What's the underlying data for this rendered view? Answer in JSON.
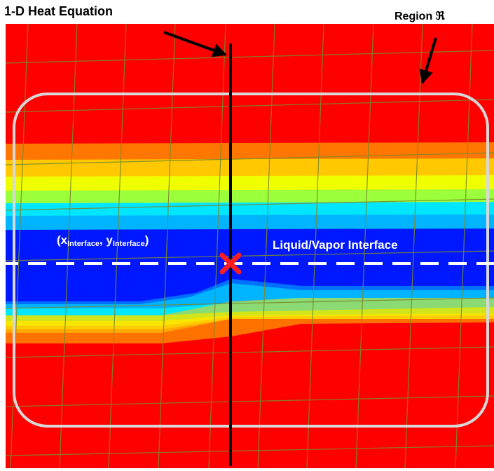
{
  "labels": {
    "top_left": "1-D Heat Equation",
    "top_right_prefix": "Region ",
    "top_right_symbol": "ℜ",
    "coord_open": "(x",
    "coord_x_sub": "Interface",
    "coord_mid": ", y",
    "coord_y_sub": "Interface",
    "coord_close": ")",
    "interface": "Liquid/Vapor Interface"
  },
  "colors": {
    "background_field": "#ff0000",
    "grid_lines": "#7a8a2a",
    "liquid_core": "#0018ff",
    "cyan_band": "#00e6ff",
    "yellow_band": "#ffff00",
    "orange_band": "#ff9900",
    "region_outline": "#d8d8d8",
    "interface_dash": "#ffffff",
    "marker": "#ff1e1e",
    "vertical_line": "#000000",
    "arrows": "#000000"
  },
  "icons": {
    "marker": "x-cross-icon",
    "arrows": "arrow-icon"
  }
}
